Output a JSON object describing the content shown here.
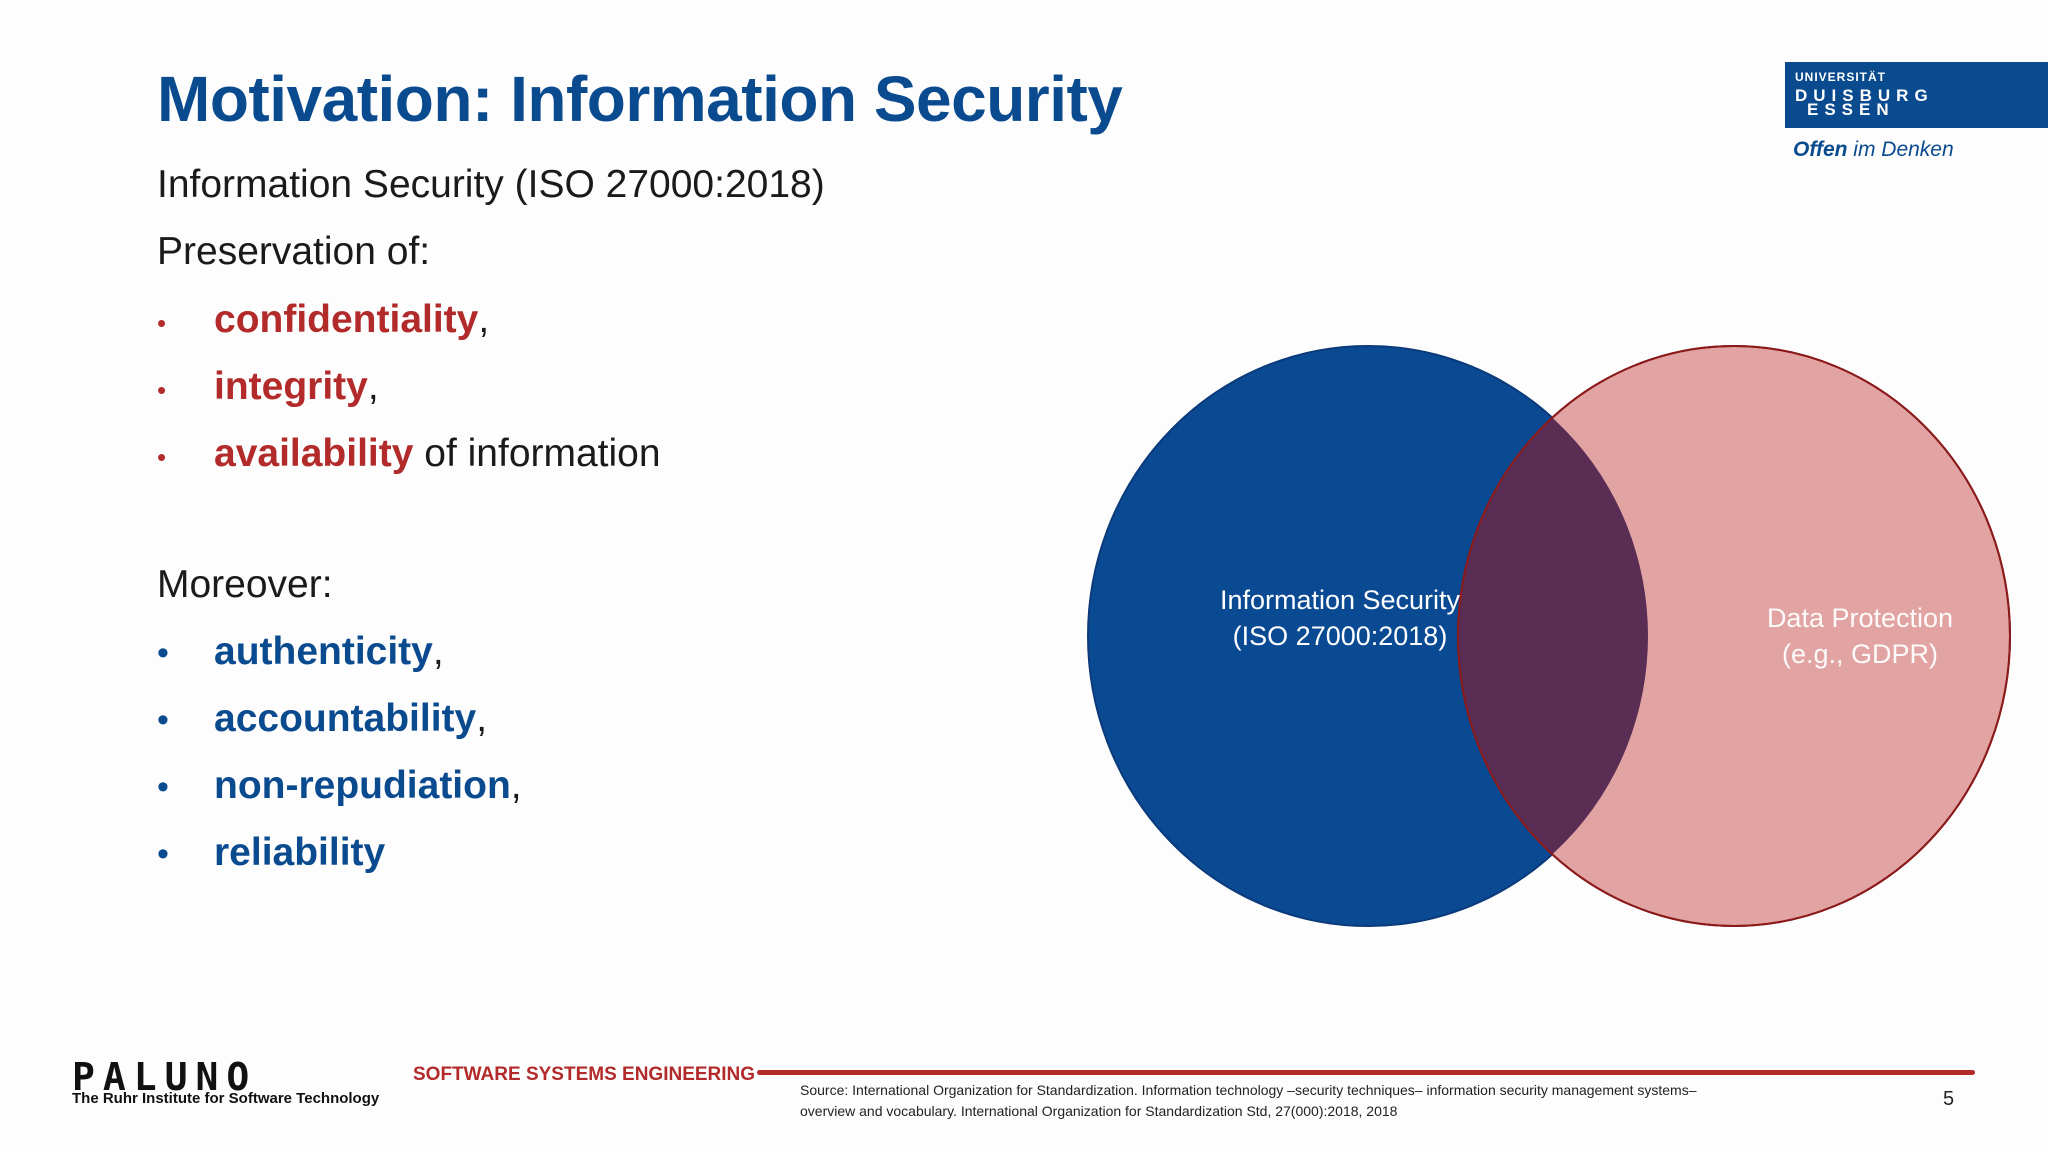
{
  "slide": {
    "title": "Motivation: Information Security",
    "line1": "Information Security (ISO 27000:2018)",
    "line2": "Preservation of:",
    "primary_items": [
      {
        "term": "confidentiality",
        "suffix": ","
      },
      {
        "term": "integrity",
        "suffix": ","
      },
      {
        "term": "availability",
        "suffix": " of information"
      }
    ],
    "moreover_label": "Moreover:",
    "secondary_items": [
      {
        "term": "authenticity",
        "suffix": ","
      },
      {
        "term": "accountability",
        "suffix": ","
      },
      {
        "term": "non-repudiation",
        "suffix": ","
      },
      {
        "term": "reliability",
        "suffix": ""
      }
    ]
  },
  "logo": {
    "line1": "UNIVERSITÄT",
    "line2": "DUISBURG",
    "line3": "ESSEN",
    "slogan_bold": "Offen",
    "slogan_rest": " im Denken"
  },
  "venn": {
    "left_label_1": "Information Security",
    "left_label_2": "(ISO 27000:2018)",
    "right_label_1": "Data Protection",
    "right_label_2": "(e.g., GDPR)",
    "colors": {
      "left_fill": "#0a4a93",
      "right_fill": "#e2a3a3",
      "overlap_fill": "#5a2d55",
      "right_stroke": "#8b1a1a"
    }
  },
  "footer": {
    "paluno": "PALUNO",
    "paluno_sub": "The Ruhr Institute for Software Technology",
    "department": "SOFTWARE SYSTEMS ENGINEERING",
    "source_1": "Source: International Organization for Standardization. Information technology –security techniques– information security management systems–",
    "source_2": "overview and vocabulary. International Organization for Standardization Std, 27(000):2018, 2018",
    "page_number": "5"
  }
}
